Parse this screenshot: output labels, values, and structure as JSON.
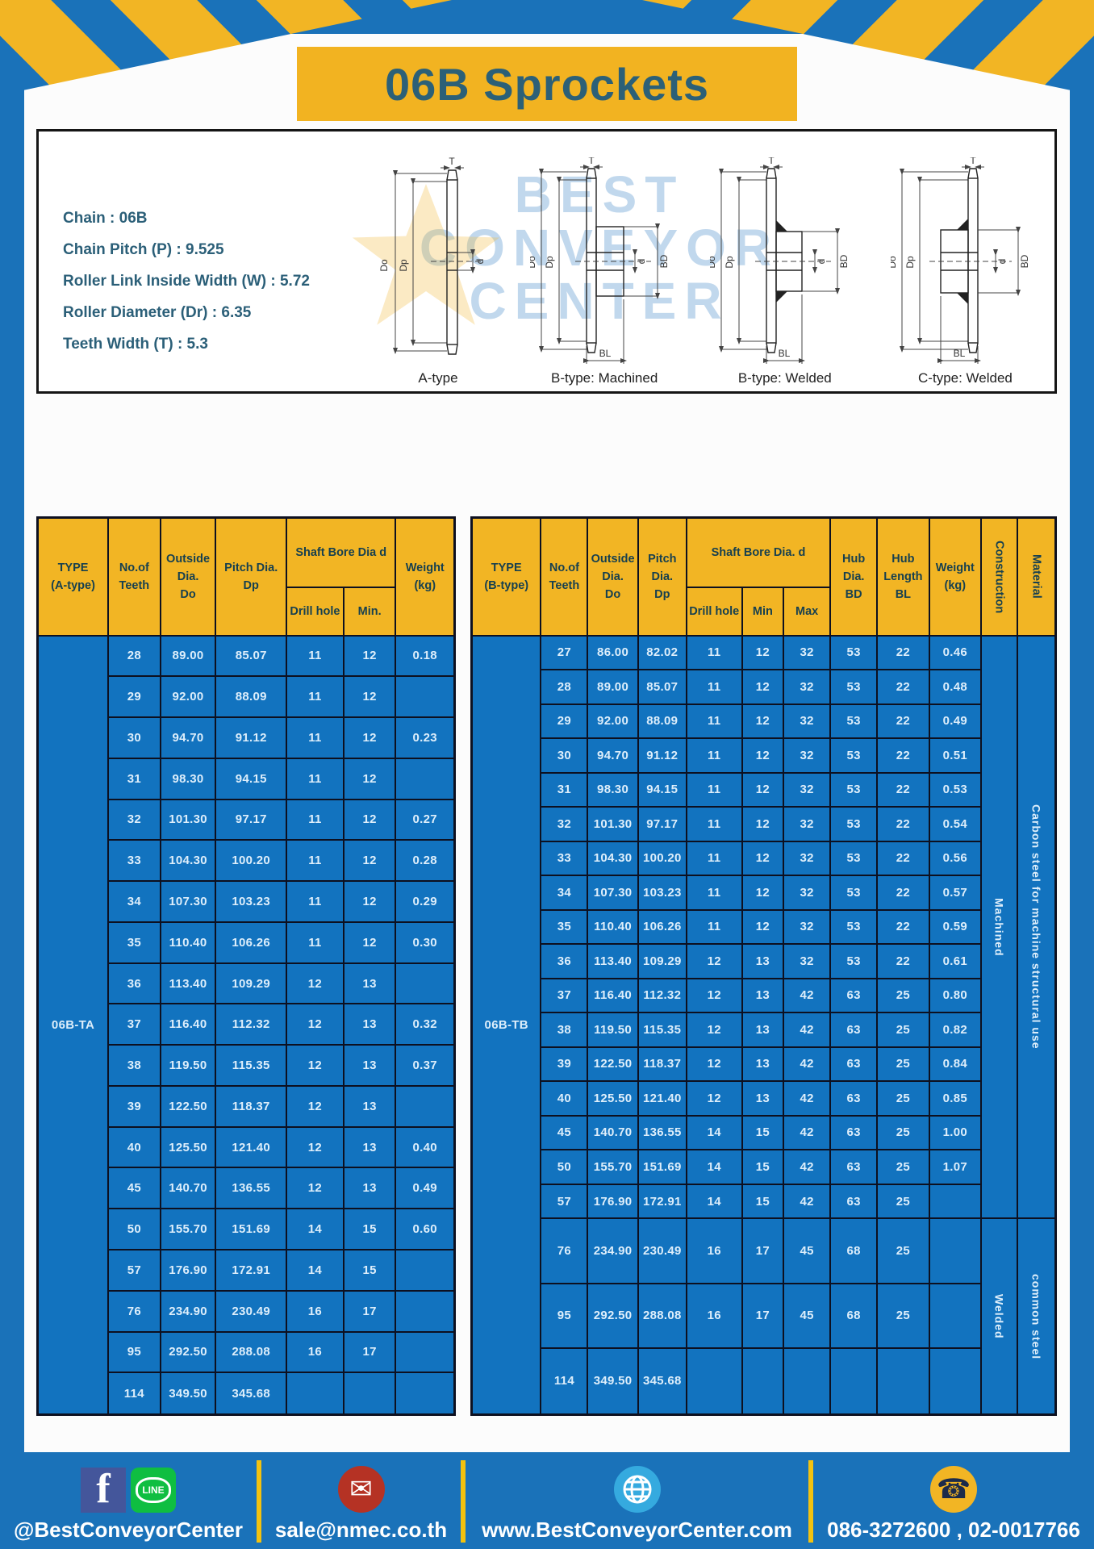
{
  "title": "06B Sprockets",
  "specs": [
    "Chain  : 06B",
    "Chain Pitch (P)  :  9.525",
    "Roller Link Inside Width (W)  :  5.72",
    "Roller Diameter (Dr)  : 6.35",
    "Teeth Width (T)  :  5.3"
  ],
  "watermark": {
    "line1": "BEST",
    "line2": "CONVEYOR",
    "line3": "CENTER"
  },
  "diagrams": {
    "dims": {
      "t": "T",
      "do": "Do",
      "dp": "Dp",
      "d": "d",
      "bd": "BD",
      "bl": "BL"
    },
    "captions": [
      "A-type",
      "B-type: Machined",
      "B-type: Welded",
      "C-type: Welded"
    ]
  },
  "table_a": {
    "type_label": "06B-TA",
    "headers": {
      "type": "TYPE\n(A-type)",
      "teeth": "No.of\nTeeth",
      "outside": "Outside\nDia.\nDo",
      "pitch": "Pitch Dia.\nDp",
      "bore": "Shaft Bore Dia d",
      "drill": "Drill hole",
      "min": "Min.",
      "weight": "Weight\n(kg)"
    },
    "rows": [
      [
        "28",
        "89.00",
        "85.07",
        "11",
        "12",
        "0.18"
      ],
      [
        "29",
        "92.00",
        "88.09",
        "11",
        "12",
        ""
      ],
      [
        "30",
        "94.70",
        "91.12",
        "11",
        "12",
        "0.23"
      ],
      [
        "31",
        "98.30",
        "94.15",
        "11",
        "12",
        ""
      ],
      [
        "32",
        "101.30",
        "97.17",
        "11",
        "12",
        "0.27"
      ],
      [
        "33",
        "104.30",
        "100.20",
        "11",
        "12",
        "0.28"
      ],
      [
        "34",
        "107.30",
        "103.23",
        "11",
        "12",
        "0.29"
      ],
      [
        "35",
        "110.40",
        "106.26",
        "11",
        "12",
        "0.30"
      ],
      [
        "36",
        "113.40",
        "109.29",
        "12",
        "13",
        ""
      ],
      [
        "37",
        "116.40",
        "112.32",
        "12",
        "13",
        "0.32"
      ],
      [
        "38",
        "119.50",
        "115.35",
        "12",
        "13",
        "0.37"
      ],
      [
        "39",
        "122.50",
        "118.37",
        "12",
        "13",
        ""
      ],
      [
        "40",
        "125.50",
        "121.40",
        "12",
        "13",
        "0.40"
      ],
      [
        "45",
        "140.70",
        "136.55",
        "12",
        "13",
        "0.49"
      ],
      [
        "50",
        "155.70",
        "151.69",
        "14",
        "15",
        "0.60"
      ],
      [
        "57",
        "176.90",
        "172.91",
        "14",
        "15",
        ""
      ],
      [
        "76",
        "234.90",
        "230.49",
        "16",
        "17",
        ""
      ],
      [
        "95",
        "292.50",
        "288.08",
        "16",
        "17",
        ""
      ],
      [
        "114",
        "349.50",
        "345.68",
        "",
        "",
        ""
      ]
    ]
  },
  "table_b": {
    "type_label": "06B-TB",
    "headers": {
      "type": "TYPE\n(B-type)",
      "teeth": "No.of\nTeeth",
      "outside": "Outside\nDia.\nDo",
      "pitch": "Pitch\nDia.\nDp",
      "bore": "Shaft Bore Dia. d",
      "drill": "Drill hole",
      "min": "Min",
      "max": "Max",
      "hub_dia": "Hub\nDia.\nBD",
      "hub_len": "Hub\nLength\nBL",
      "weight": "Weight\n(kg)",
      "construction": "Construction",
      "material": "Material"
    },
    "rows": [
      [
        "27",
        "86.00",
        "82.02",
        "11",
        "12",
        "32",
        "53",
        "22",
        "0.46"
      ],
      [
        "28",
        "89.00",
        "85.07",
        "11",
        "12",
        "32",
        "53",
        "22",
        "0.48"
      ],
      [
        "29",
        "92.00",
        "88.09",
        "11",
        "12",
        "32",
        "53",
        "22",
        "0.49"
      ],
      [
        "30",
        "94.70",
        "91.12",
        "11",
        "12",
        "32",
        "53",
        "22",
        "0.51"
      ],
      [
        "31",
        "98.30",
        "94.15",
        "11",
        "12",
        "32",
        "53",
        "22",
        "0.53"
      ],
      [
        "32",
        "101.30",
        "97.17",
        "11",
        "12",
        "32",
        "53",
        "22",
        "0.54"
      ],
      [
        "33",
        "104.30",
        "100.20",
        "11",
        "12",
        "32",
        "53",
        "22",
        "0.56"
      ],
      [
        "34",
        "107.30",
        "103.23",
        "11",
        "12",
        "32",
        "53",
        "22",
        "0.57"
      ],
      [
        "35",
        "110.40",
        "106.26",
        "11",
        "12",
        "32",
        "53",
        "22",
        "0.59"
      ],
      [
        "36",
        "113.40",
        "109.29",
        "12",
        "13",
        "32",
        "53",
        "22",
        "0.61"
      ],
      [
        "37",
        "116.40",
        "112.32",
        "12",
        "13",
        "42",
        "63",
        "25",
        "0.80"
      ],
      [
        "38",
        "119.50",
        "115.35",
        "12",
        "13",
        "42",
        "63",
        "25",
        "0.82"
      ],
      [
        "39",
        "122.50",
        "118.37",
        "12",
        "13",
        "42",
        "63",
        "25",
        "0.84"
      ],
      [
        "40",
        "125.50",
        "121.40",
        "12",
        "13",
        "42",
        "63",
        "25",
        "0.85"
      ],
      [
        "45",
        "140.70",
        "136.55",
        "14",
        "15",
        "42",
        "63",
        "25",
        "1.00"
      ],
      [
        "50",
        "155.70",
        "151.69",
        "14",
        "15",
        "42",
        "63",
        "25",
        "1.07"
      ],
      [
        "57",
        "176.90",
        "172.91",
        "14",
        "15",
        "42",
        "63",
        "25",
        ""
      ],
      [
        "76",
        "234.90",
        "230.49",
        "16",
        "17",
        "45",
        "68",
        "25",
        ""
      ],
      [
        "95",
        "292.50",
        "288.08",
        "16",
        "17",
        "45",
        "68",
        "25",
        ""
      ],
      [
        "114",
        "349.50",
        "345.68",
        "",
        "",
        "",
        "",
        "",
        ""
      ]
    ],
    "construction_groups": [
      {
        "label": "Machined",
        "span": 17
      },
      {
        "label": "Welded",
        "span": 3
      }
    ],
    "material_groups": [
      {
        "label": "Carbon steel for machine structural use",
        "span": 17
      },
      {
        "label": "common steel",
        "span": 3
      }
    ]
  },
  "footer": {
    "facebook_letter": "f",
    "line_text": "LINE",
    "social_label": "@BestConveyorCenter",
    "email": "sale@nmec.co.th",
    "website": "www.BestConveyorCenter.com",
    "phone": "086-3272600 , 02-0017766"
  },
  "colors": {
    "frame_blue": "#1a72b9",
    "cell_blue": "#1273bf",
    "header_yellow": "#f2b524",
    "title_teal": "#2c6077",
    "border_dark": "#0d1020"
  }
}
